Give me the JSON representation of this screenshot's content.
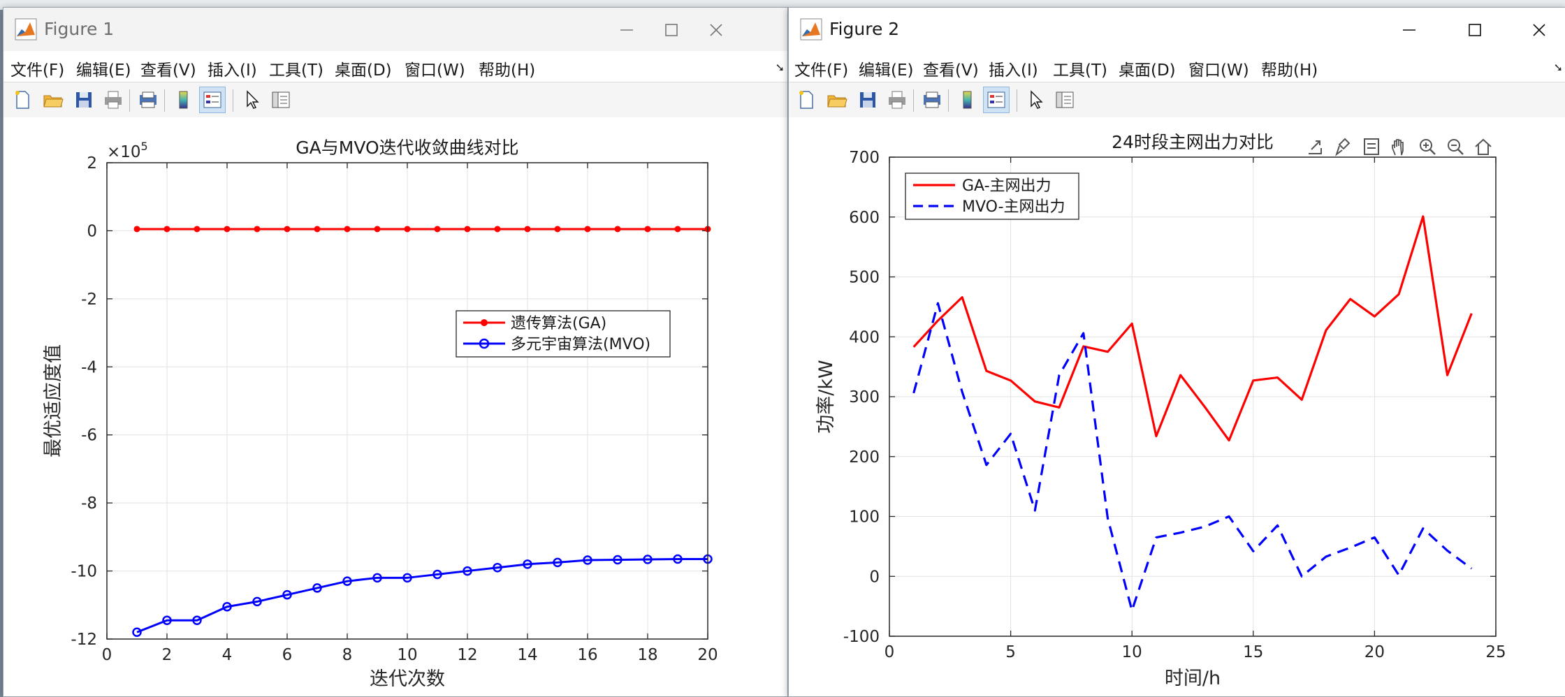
{
  "figure1": {
    "title": "Figure 1",
    "menu": [
      "文件(F)",
      "编辑(E)",
      "查看(V)",
      "插入(I)",
      "工具(T)",
      "桌面(D)",
      "窗口(W)",
      "帮助(H)"
    ],
    "toolbar_icons": [
      "new-figure-icon",
      "open-file-icon",
      "save-icon",
      "print-icon",
      "print-preview-icon",
      "colorbar-icon",
      "legend-icon",
      "pointer-icon",
      "property-inspector-icon"
    ],
    "chart_data": {
      "type": "line",
      "title": "GA与MVO迭代收敛曲线对比",
      "xlabel": "迭代次数",
      "ylabel": "最优适应度值",
      "y_exponent_label": "×10",
      "y_exponent_value": "5",
      "xlim": [
        0,
        20
      ],
      "ylim": [
        -12,
        2
      ],
      "xticks": [
        "0",
        "2",
        "4",
        "6",
        "8",
        "10",
        "12",
        "14",
        "16",
        "18",
        "20"
      ],
      "yticks": [
        "2",
        "0",
        "-2",
        "-4",
        "-6",
        "-8",
        "-10",
        "-12"
      ],
      "grid": true,
      "legend_position": "middle-right",
      "x": [
        1,
        2,
        3,
        4,
        5,
        6,
        7,
        8,
        9,
        10,
        11,
        12,
        13,
        14,
        15,
        16,
        17,
        18,
        19,
        20
      ],
      "series": [
        {
          "name": "遗传算法(GA)",
          "color": "#ff0000",
          "marker": "dot",
          "values": [
            0.05,
            0.05,
            0.05,
            0.05,
            0.05,
            0.05,
            0.05,
            0.05,
            0.05,
            0.05,
            0.05,
            0.05,
            0.05,
            0.05,
            0.05,
            0.05,
            0.05,
            0.05,
            0.05,
            0.05
          ]
        },
        {
          "name": "多元宇宙算法(MVO)",
          "color": "#0000ff",
          "marker": "circle",
          "values": [
            -11.8,
            -11.45,
            -11.45,
            -11.05,
            -10.9,
            -10.7,
            -10.5,
            -10.3,
            -10.2,
            -10.2,
            -10.1,
            -10.0,
            -9.9,
            -9.8,
            -9.75,
            -9.68,
            -9.67,
            -9.66,
            -9.65,
            -9.65
          ]
        }
      ]
    }
  },
  "figure2": {
    "title": "Figure 2",
    "menu": [
      "文件(F)",
      "编辑(E)",
      "查看(V)",
      "插入(I)",
      "工具(T)",
      "桌面(D)",
      "窗口(W)",
      "帮助(H)"
    ],
    "toolbar_icons": [
      "new-figure-icon",
      "open-file-icon",
      "save-icon",
      "print-icon",
      "print-preview-icon",
      "colorbar-icon",
      "legend-icon",
      "pointer-icon",
      "property-inspector-icon"
    ],
    "plot_tool_icons": [
      "export-icon",
      "brush-icon",
      "data-tips-icon",
      "pan-icon",
      "zoom-in-icon",
      "zoom-out-icon",
      "home-icon"
    ],
    "chart_data": {
      "type": "line",
      "title": "24时段主网出力对比",
      "xlabel": "时间/h",
      "ylabel": "功率/kW",
      "xlim": [
        0,
        25
      ],
      "ylim": [
        -100,
        700
      ],
      "xticks": [
        "0",
        "5",
        "10",
        "15",
        "20",
        "25"
      ],
      "yticks": [
        "700",
        "600",
        "500",
        "400",
        "300",
        "200",
        "100",
        "0",
        "-100"
      ],
      "grid": true,
      "legend_position": "top-left",
      "x": [
        1,
        2,
        3,
        4,
        5,
        6,
        7,
        8,
        9,
        10,
        11,
        12,
        13,
        14,
        15,
        16,
        17,
        18,
        19,
        20,
        21,
        22,
        23,
        24
      ],
      "series": [
        {
          "name": "GA-主网出力",
          "color": "#ff0000",
          "dash": "solid",
          "values": [
            383,
            427,
            466,
            343,
            327,
            292,
            282,
            384,
            375,
            422,
            234,
            336,
            283,
            227,
            327,
            332,
            295,
            411,
            463,
            434,
            471,
            601,
            336,
            439
          ]
        },
        {
          "name": "MVO-主网出力",
          "color": "#0000ff",
          "dash": "dashed",
          "values": [
            306,
            456,
            308,
            186,
            238,
            110,
            336,
            406,
            97,
            -57,
            65,
            73,
            83,
            100,
            42,
            85,
            0,
            33,
            48,
            65,
            2,
            80,
            43,
            13
          ]
        }
      ]
    }
  }
}
